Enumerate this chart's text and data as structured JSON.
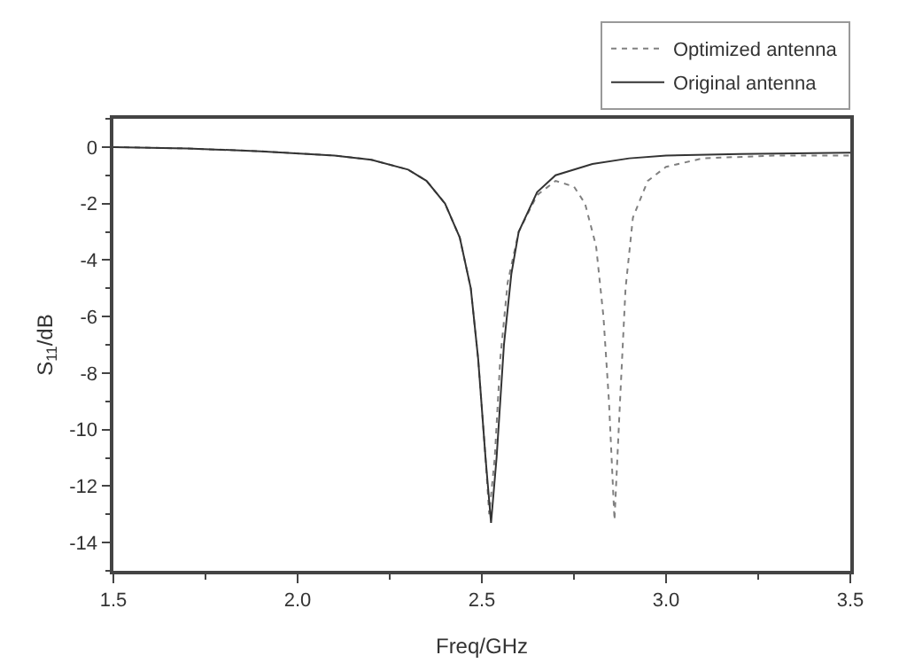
{
  "chart_data": {
    "type": "line",
    "xlabel": "Freq/GHz",
    "ylabel": "S$_{11}$/dB",
    "xlim": [
      1.5,
      3.5
    ],
    "xticks": [
      1.5,
      {
        "value": 2,
        "label": "2.0"
      },
      2.5,
      {
        "value": 3,
        "label": "3.0"
      },
      3.5
    ],
    "ylim": [
      -15,
      1
    ],
    "yticks": [
      -14,
      -12,
      -10,
      -8,
      -6,
      -4,
      -2,
      0
    ],
    "grid": false,
    "legend": "top right",
    "marker": "none",
    "series": [
      {
        "name": "Optimized antenna",
        "color": "#808080",
        "line_style": "dotted",
        "x": [
          1.5,
          1.7,
          1.9,
          2.1,
          2.2,
          2.3,
          2.35,
          2.4,
          2.44,
          2.47,
          2.49,
          2.51,
          2.52,
          2.535,
          2.55,
          2.57,
          2.6,
          2.65,
          2.7,
          2.75,
          2.78,
          2.81,
          2.83,
          2.845,
          2.86,
          2.875,
          2.89,
          2.91,
          2.95,
          3.0,
          3.1,
          3.3,
          3.5
        ],
        "values": [
          0,
          -0.05,
          -0.15,
          -0.3,
          -0.45,
          -0.8,
          -1.2,
          -2,
          -3.2,
          -5,
          -7.5,
          -11,
          -13,
          -11,
          -7.5,
          -4.8,
          -3,
          -1.7,
          -1.2,
          -1.4,
          -2,
          -3.5,
          -6,
          -9,
          -13.2,
          -9,
          -5,
          -2.5,
          -1.2,
          -0.7,
          -0.4,
          -0.3,
          -0.3
        ]
      },
      {
        "name": "Original antenna",
        "color": "#333333",
        "line_style": "solid",
        "x": [
          1.5,
          1.7,
          1.9,
          2.1,
          2.2,
          2.3,
          2.35,
          2.4,
          2.44,
          2.47,
          2.49,
          2.51,
          2.525,
          2.54,
          2.56,
          2.58,
          2.6,
          2.65,
          2.7,
          2.8,
          2.9,
          3.0,
          3.2,
          3.5
        ],
        "values": [
          0,
          -0.05,
          -0.15,
          -0.3,
          -0.45,
          -0.8,
          -1.2,
          -2,
          -3.2,
          -5,
          -7.5,
          -11,
          -13.3,
          -11,
          -7,
          -4.5,
          -3,
          -1.6,
          -1,
          -0.6,
          -0.4,
          -0.3,
          -0.25,
          -0.2
        ]
      }
    ]
  }
}
